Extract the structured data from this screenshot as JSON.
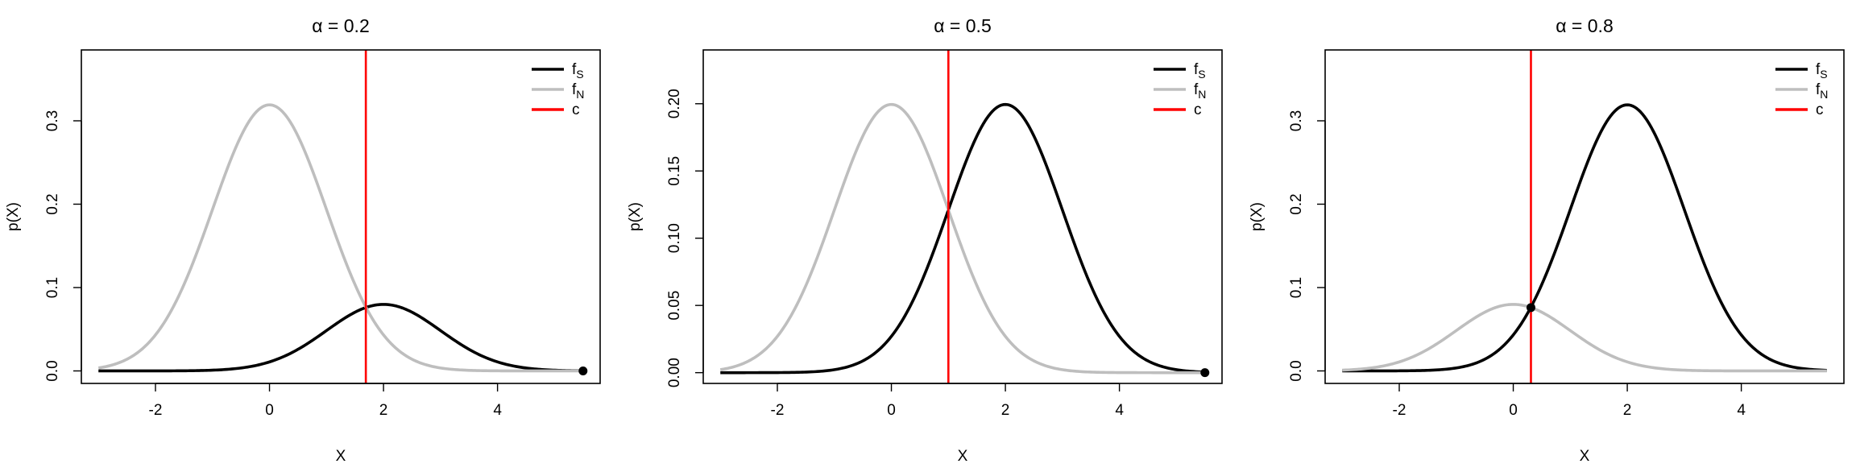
{
  "chart_data": [
    {
      "type": "line",
      "title": "α = 0.2",
      "alpha": 0.2,
      "xlabel": "X",
      "ylabel": "p(X)",
      "xlim": [
        -3.3,
        5.8
      ],
      "ylim": [
        -0.015,
        0.385
      ],
      "xticks": [
        -2,
        0,
        2,
        4
      ],
      "xtick_labels": [
        "-2",
        "0",
        "2",
        "4"
      ],
      "yticks": [
        0.0,
        0.1,
        0.2,
        0.3
      ],
      "ytick_labels": [
        "0.0",
        "0.1",
        "0.2",
        "0.3"
      ],
      "x_range": [
        -3,
        5.5
      ],
      "criterion_c": 1.69,
      "marker_x": 5.5,
      "marker_y": 0.0,
      "series": [
        {
          "name": "f_S",
          "color": "#000000",
          "mean": 2,
          "sd": 1,
          "weight": 0.2
        },
        {
          "name": "f_N",
          "color": "#bebebe",
          "mean": 0,
          "sd": 1,
          "weight": 0.8
        }
      ],
      "legend": {
        "placement": "top-right",
        "items": [
          {
            "base": "f",
            "sub": "S",
            "color": "#000000"
          },
          {
            "base": "f",
            "sub": "N",
            "color": "#bebebe"
          },
          {
            "base": "c",
            "sub": "",
            "color": "#ff0000"
          }
        ]
      }
    },
    {
      "type": "line",
      "title": "α = 0.5",
      "alpha": 0.5,
      "xlabel": "X",
      "ylabel": "p(X)",
      "xlim": [
        -3.3,
        5.8
      ],
      "ylim": [
        -0.008,
        0.24
      ],
      "xticks": [
        -2,
        0,
        2,
        4
      ],
      "xtick_labels": [
        "-2",
        "0",
        "2",
        "4"
      ],
      "yticks": [
        0.0,
        0.05,
        0.1,
        0.15,
        0.2
      ],
      "ytick_labels": [
        "0.00",
        "0.05",
        "0.10",
        "0.15",
        "0.20"
      ],
      "x_range": [
        -3,
        5.5
      ],
      "criterion_c": 1.0,
      "marker_x": 5.5,
      "marker_y": 0.0,
      "series": [
        {
          "name": "f_S",
          "color": "#000000",
          "mean": 2,
          "sd": 1,
          "weight": 0.5
        },
        {
          "name": "f_N",
          "color": "#bebebe",
          "mean": 0,
          "sd": 1,
          "weight": 0.5
        }
      ],
      "legend": {
        "placement": "top-right",
        "items": [
          {
            "base": "f",
            "sub": "S",
            "color": "#000000"
          },
          {
            "base": "f",
            "sub": "N",
            "color": "#bebebe"
          },
          {
            "base": "c",
            "sub": "",
            "color": "#ff0000"
          }
        ]
      }
    },
    {
      "type": "line",
      "title": "α = 0.8",
      "alpha": 0.8,
      "xlabel": "X",
      "ylabel": "p(X)",
      "xlim": [
        -3.3,
        5.8
      ],
      "ylim": [
        -0.015,
        0.385
      ],
      "xticks": [
        -2,
        0,
        2,
        4
      ],
      "xtick_labels": [
        "-2",
        "0",
        "2",
        "4"
      ],
      "yticks": [
        0.0,
        0.1,
        0.2,
        0.3
      ],
      "ytick_labels": [
        "0.0",
        "0.1",
        "0.2",
        "0.3"
      ],
      "x_range": [
        -3,
        5.5
      ],
      "criterion_c": 0.31,
      "marker_x": 0.31,
      "marker_y": 0.076,
      "series": [
        {
          "name": "f_S",
          "color": "#000000",
          "mean": 2,
          "sd": 1,
          "weight": 0.8
        },
        {
          "name": "f_N",
          "color": "#bebebe",
          "mean": 0,
          "sd": 1,
          "weight": 0.2
        }
      ],
      "legend": {
        "placement": "top-right",
        "items": [
          {
            "base": "f",
            "sub": "S",
            "color": "#000000"
          },
          {
            "base": "f",
            "sub": "N",
            "color": "#bebebe"
          },
          {
            "base": "c",
            "sub": "",
            "color": "#ff0000"
          }
        ]
      }
    }
  ]
}
